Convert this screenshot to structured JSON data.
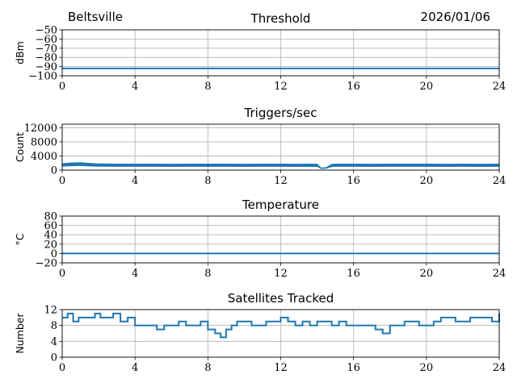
{
  "header": {
    "location": "Beltsville",
    "date": "2026/01/06"
  },
  "chart_data": [
    {
      "type": "line",
      "title": "Threshold",
      "ylabel": "dBm",
      "xlim": [
        0,
        24
      ],
      "ylim": [
        -100,
        -50
      ],
      "x_ticks": [
        0,
        4,
        8,
        12,
        16,
        20,
        24
      ],
      "y_ticks": [
        -100,
        -90,
        -80,
        -70,
        -60,
        -50
      ],
      "grid": true,
      "series": [
        {
          "x": [
            0,
            24
          ],
          "values": [
            -92,
            -92
          ]
        }
      ]
    },
    {
      "type": "line",
      "title": "Triggers/sec",
      "ylabel": "Count",
      "xlim": [
        0,
        24
      ],
      "ylim": [
        0,
        13000
      ],
      "x_ticks": [
        0,
        4,
        8,
        12,
        16,
        20,
        24
      ],
      "y_ticks": [
        0,
        4000,
        8000,
        12000
      ],
      "grid": true,
      "series": [
        {
          "x": [
            0,
            0.5,
            1,
            1.5,
            2,
            3,
            4,
            5,
            6,
            7,
            8,
            9,
            10,
            11,
            12,
            13,
            14,
            14.2,
            14.5,
            14.8,
            15,
            16,
            17,
            18,
            19,
            20,
            21,
            22,
            23,
            24
          ],
          "values": [
            1800,
            2000,
            2100,
            1900,
            1750,
            1700,
            1700,
            1700,
            1650,
            1700,
            1700,
            1700,
            1650,
            1700,
            1700,
            1650,
            1700,
            600,
            700,
            1600,
            1700,
            1700,
            1650,
            1700,
            1700,
            1700,
            1650,
            1700,
            1650,
            1700
          ]
        }
      ]
    },
    {
      "type": "line",
      "title": "Temperature",
      "ylabel": "°C",
      "xlim": [
        0,
        24
      ],
      "ylim": [
        -20,
        80
      ],
      "x_ticks": [
        0,
        4,
        8,
        12,
        16,
        20,
        24
      ],
      "y_ticks": [
        -20,
        0,
        20,
        40,
        60,
        80
      ],
      "grid": true,
      "series": [
        {
          "x": [
            0,
            24
          ],
          "values": [
            0,
            0
          ]
        }
      ]
    },
    {
      "type": "line",
      "title": "Satellites Tracked",
      "ylabel": "Number",
      "xlim": [
        0,
        24
      ],
      "ylim": [
        0,
        12
      ],
      "x_ticks": [
        0,
        4,
        8,
        12,
        16,
        20,
        24
      ],
      "y_ticks": [
        0,
        4,
        8,
        12
      ],
      "grid": true,
      "series": [
        {
          "step": true,
          "x": [
            0,
            0.3,
            0.6,
            0.9,
            1.2,
            1.5,
            1.8,
            2.1,
            2.4,
            2.8,
            3.2,
            3.6,
            4.0,
            4.4,
            4.8,
            5.2,
            5.6,
            6.0,
            6.4,
            6.8,
            7.2,
            7.6,
            8.0,
            8.4,
            8.7,
            9.0,
            9.3,
            9.6,
            10.0,
            10.4,
            10.8,
            11.2,
            11.6,
            12.0,
            12.4,
            12.8,
            13.2,
            13.6,
            14.0,
            14.4,
            14.8,
            15.2,
            15.6,
            16.0,
            16.4,
            16.8,
            17.2,
            17.6,
            18.0,
            18.4,
            18.8,
            19.2,
            19.6,
            20.0,
            20.4,
            20.8,
            21.2,
            21.6,
            22.0,
            22.4,
            22.8,
            23.2,
            23.6,
            24.0
          ],
          "values": [
            10,
            11,
            9,
            10,
            10,
            10,
            11,
            10,
            10,
            11,
            9,
            10,
            8,
            8,
            8,
            7,
            8,
            8,
            9,
            8,
            8,
            9,
            7,
            6,
            5,
            7,
            8,
            9,
            9,
            8,
            8,
            9,
            9,
            10,
            9,
            8,
            9,
            8,
            9,
            9,
            8,
            9,
            8,
            8,
            8,
            8,
            7,
            6,
            8,
            8,
            9,
            9,
            8,
            8,
            9,
            10,
            10,
            9,
            9,
            10,
            10,
            10,
            9,
            11
          ]
        }
      ]
    }
  ]
}
